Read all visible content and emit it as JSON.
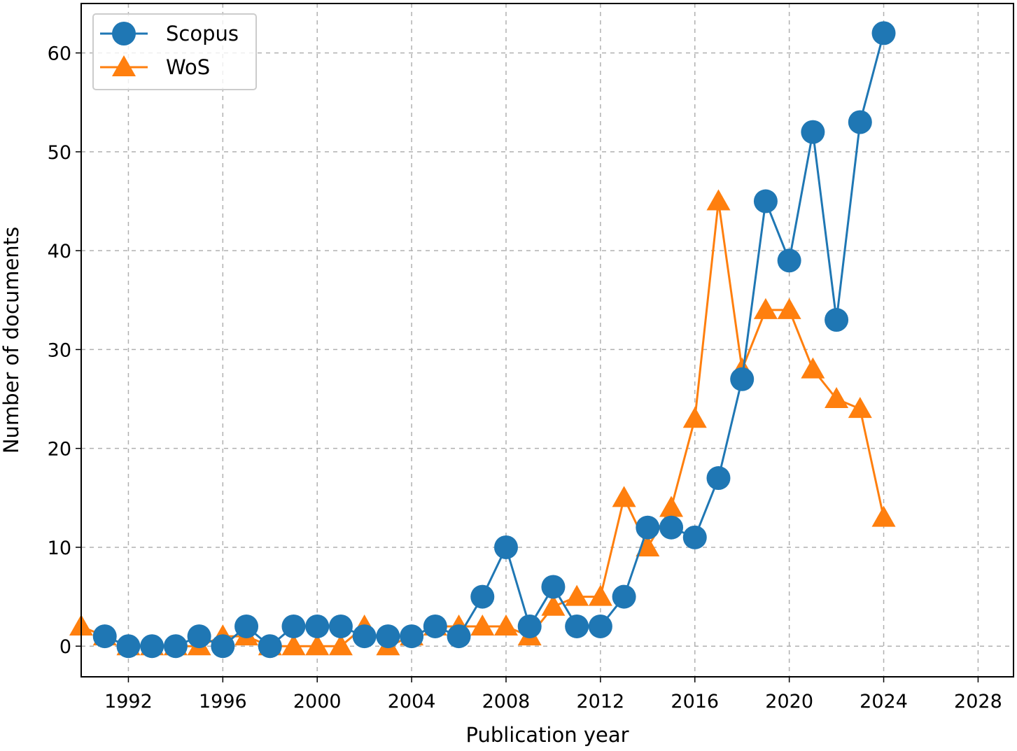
{
  "chart_data": {
    "type": "line",
    "title": "",
    "xlabel": "Publication year",
    "ylabel": "Number of documents",
    "xlim": [
      1990,
      2029.5
    ],
    "ylim": [
      -3.1,
      65
    ],
    "xticks": [
      1992,
      1996,
      2000,
      2004,
      2008,
      2012,
      2016,
      2020,
      2024,
      2028
    ],
    "yticks": [
      0,
      10,
      20,
      30,
      40,
      50,
      60
    ],
    "grid": true,
    "legend_position": "top-left",
    "series": [
      {
        "name": "Scopus",
        "color": "#1f77b4",
        "marker": "circle",
        "x": [
          1991,
          1992,
          1993,
          1994,
          1995,
          1996,
          1997,
          1998,
          1999,
          2000,
          2001,
          2002,
          2003,
          2004,
          2005,
          2006,
          2007,
          2008,
          2009,
          2010,
          2011,
          2012,
          2013,
          2014,
          2015,
          2016,
          2017,
          2018,
          2019,
          2020,
          2021,
          2022,
          2023,
          2024
        ],
        "values": [
          1,
          0,
          0,
          0,
          1,
          0,
          2,
          0,
          2,
          2,
          2,
          1,
          1,
          1,
          2,
          1,
          5,
          10,
          2,
          6,
          2,
          2,
          5,
          12,
          12,
          11,
          17,
          27,
          45,
          39,
          52,
          33,
          53,
          62
        ]
      },
      {
        "name": "WoS",
        "color": "#ff7f0e",
        "marker": "triangle",
        "x": [
          1990,
          1991,
          1992,
          1993,
          1994,
          1995,
          1996,
          1997,
          1998,
          1999,
          2000,
          2001,
          2002,
          2003,
          2004,
          2005,
          2006,
          2007,
          2008,
          2009,
          2010,
          2011,
          2012,
          2013,
          2014,
          2015,
          2016,
          2017,
          2018,
          2019,
          2020,
          2021,
          2022,
          2023,
          2024
        ],
        "values": [
          2,
          1,
          0,
          0,
          0,
          0,
          1,
          1,
          0,
          0,
          0,
          0,
          2,
          0,
          1,
          2,
          2,
          2,
          2,
          1,
          4,
          5,
          5,
          15,
          10,
          14,
          23,
          45,
          28,
          34,
          34,
          28,
          25,
          24,
          13
        ]
      }
    ]
  }
}
